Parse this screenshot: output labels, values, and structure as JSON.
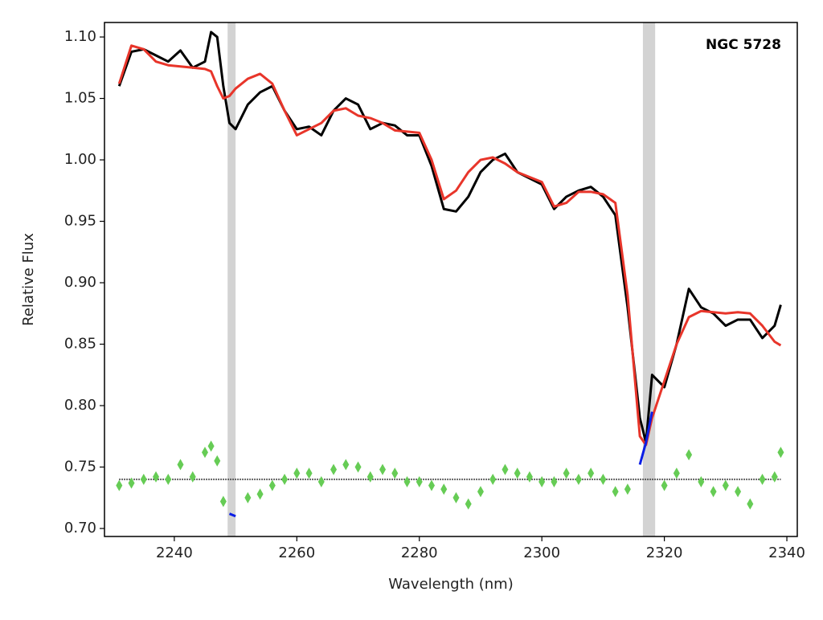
{
  "chart_data": {
    "type": "line",
    "annotation": "NGC 5728",
    "x_label": "Wavelength (nm)",
    "y_label": "Relative Flux",
    "xlim": [
      2228.6,
      2341.7
    ],
    "ylim": [
      0.6935,
      1.1118
    ],
    "xticks": [
      2240,
      2260,
      2280,
      2300,
      2320,
      2340
    ],
    "yticks": [
      {
        "value": 0.7,
        "label": "0.70"
      },
      {
        "value": 0.75,
        "label": "0.75"
      },
      {
        "value": 0.8,
        "label": "0.80"
      },
      {
        "value": 0.85,
        "label": "0.85"
      },
      {
        "value": 0.9,
        "label": "0.90"
      },
      {
        "value": 0.95,
        "label": "0.95"
      },
      {
        "value": 1.0,
        "label": "1.00"
      },
      {
        "value": 1.05,
        "label": "1.05"
      },
      {
        "value": 1.1,
        "label": "1.10"
      }
    ],
    "masked_regions": [
      [
        2248.7,
        2250
      ],
      [
        2316.5,
        2318.5
      ]
    ],
    "hline": 0.74,
    "x": [
      2231,
      2233,
      2235,
      2237,
      2239,
      2241,
      2243,
      2245,
      2246,
      2247,
      2248,
      2249,
      2250,
      2252,
      2254,
      2256,
      2258,
      2260,
      2262,
      2264,
      2266,
      2268,
      2270,
      2272,
      2274,
      2276,
      2278,
      2280,
      2282,
      2284,
      2286,
      2288,
      2290,
      2292,
      2294,
      2296,
      2298,
      2300,
      2302,
      2304,
      2306,
      2308,
      2310,
      2312,
      2314,
      2316,
      2317,
      2318,
      2320,
      2322,
      2324,
      2326,
      2328,
      2330,
      2332,
      2334,
      2336,
      2338,
      2339
    ],
    "series": [
      {
        "color": "#000000",
        "style": "line",
        "values": [
          1.06,
          1.088,
          1.09,
          1.085,
          1.08,
          1.089,
          1.075,
          1.08,
          1.104,
          1.1,
          1.06,
          1.03,
          1.025,
          1.045,
          1.055,
          1.06,
          1.04,
          1.025,
          1.027,
          1.02,
          1.04,
          1.05,
          1.045,
          1.025,
          1.03,
          1.028,
          1.02,
          1.02,
          0.995,
          0.96,
          0.958,
          0.97,
          0.99,
          1.0,
          1.005,
          0.99,
          0.985,
          0.98,
          0.96,
          0.97,
          0.975,
          0.978,
          0.97,
          0.955,
          0.88,
          0.79,
          0.77,
          0.825,
          0.815,
          0.85,
          0.895,
          0.88,
          0.875,
          0.865,
          0.87,
          0.87,
          0.855,
          0.865,
          0.882
        ]
      },
      {
        "color": "#e8352a",
        "style": "line",
        "values": [
          1.062,
          1.093,
          1.09,
          1.08,
          1.077,
          1.076,
          1.075,
          1.074,
          1.072,
          1.06,
          1.05,
          1.052,
          1.058,
          1.066,
          1.07,
          1.062,
          1.04,
          1.02,
          1.025,
          1.03,
          1.04,
          1.042,
          1.036,
          1.034,
          1.03,
          1.024,
          1.023,
          1.022,
          1.0,
          0.968,
          0.975,
          0.99,
          1.0,
          1.002,
          0.997,
          0.99,
          0.986,
          0.982,
          0.962,
          0.965,
          0.974,
          0.974,
          0.972,
          0.965,
          0.89,
          0.775,
          0.768,
          0.79,
          0.82,
          0.85,
          0.872,
          0.877,
          0.876,
          0.875,
          0.876,
          0.875,
          0.865,
          0.852,
          0.849
        ]
      },
      {
        "color": "#66cc55",
        "style": "points",
        "values": [
          0.735,
          0.737,
          0.74,
          0.742,
          0.74,
          0.752,
          0.742,
          0.762,
          0.767,
          0.755,
          0.722,
          null,
          null,
          0.725,
          0.728,
          0.735,
          0.74,
          0.745,
          0.745,
          0.738,
          0.748,
          0.752,
          0.75,
          0.742,
          0.748,
          0.745,
          0.738,
          0.738,
          0.735,
          0.732,
          0.725,
          0.72,
          0.73,
          0.74,
          0.748,
          0.745,
          0.742,
          0.738,
          0.738,
          0.745,
          0.74,
          0.745,
          0.74,
          0.73,
          0.732,
          null,
          null,
          null,
          0.735,
          0.745,
          0.76,
          0.738,
          0.73,
          0.735,
          0.73,
          0.72,
          0.74,
          0.742,
          0.762
        ]
      },
      {
        "color": "#0a1ee6",
        "style": "line",
        "values": [
          null,
          null,
          null,
          null,
          null,
          null,
          null,
          null,
          null,
          null,
          null,
          0.712,
          0.71,
          null,
          null,
          null,
          null,
          null,
          null,
          null,
          null,
          null,
          null,
          null,
          null,
          null,
          null,
          null,
          null,
          null,
          null,
          null,
          null,
          null,
          null,
          null,
          null,
          null,
          null,
          null,
          null,
          null,
          null,
          null,
          null,
          0.752,
          0.77,
          0.795,
          null,
          null,
          null,
          null,
          null,
          null,
          null,
          null,
          null,
          null,
          null
        ]
      }
    ]
  }
}
